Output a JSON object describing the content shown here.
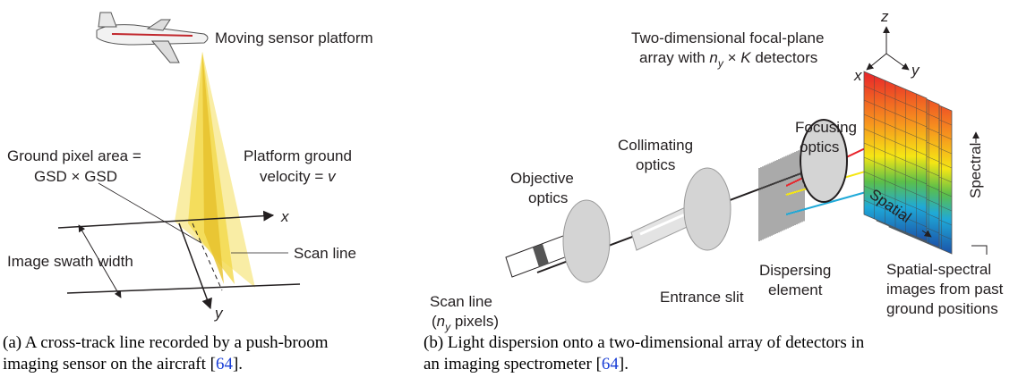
{
  "panel_a": {
    "platform": "Moving sensor platform",
    "pixel_area": [
      "Ground pixel area =",
      "GSD × GSD"
    ],
    "velocity": [
      "Platform ground",
      "velocity = ",
      "v"
    ],
    "x_axis": "x",
    "y_axis": "y",
    "swath": "Image swath width",
    "scan_line": "Scan line",
    "caption": {
      "tag": "(a)",
      "lines": [
        "A cross-track line recorded by a push-broom",
        "imaging sensor on the aircraft ["
      ],
      "ref": "64",
      "end": "]."
    }
  },
  "panel_b": {
    "array": [
      "Two-dimensional focal-plane",
      "array with ",
      "n",
      "y",
      " × ",
      "K",
      " detectors"
    ],
    "axes": [
      "z",
      "x",
      "y"
    ],
    "objective": [
      "Objective",
      "optics"
    ],
    "collimating": [
      "Collimating",
      "optics"
    ],
    "focusing": [
      "Focusing",
      "optics"
    ],
    "slit": "Entrance slit",
    "dispersing": [
      "Dispersing",
      "element"
    ],
    "scan_line": [
      "Scan line",
      "(",
      "n",
      "y",
      " pixels)"
    ],
    "spectral": "Spectral",
    "spatial": "Spatial",
    "images": [
      "Spatial-spectral",
      "images from past",
      "ground positions"
    ],
    "caption": {
      "tag": "(b)",
      "lines": [
        "Light dispersion onto a two-dimensional array of detectors in",
        "an imaging spectrometer ["
      ],
      "ref": "64",
      "end": "]."
    }
  }
}
